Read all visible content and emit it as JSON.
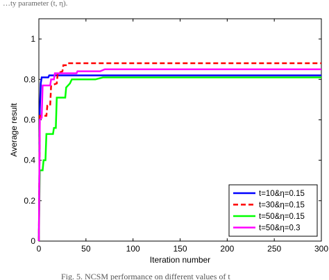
{
  "header_fragment": "…ty parameter (t, η).",
  "caption_fragment": "Fig. 5. NCSM performance on different values of t",
  "chart_data": {
    "type": "line",
    "title": "",
    "xlabel": "Iteration number",
    "ylabel": "Average result",
    "xlim": [
      0,
      300
    ],
    "ylim": [
      0,
      1.1
    ],
    "xticks": [
      0,
      50,
      100,
      150,
      200,
      250,
      300
    ],
    "yticks": [
      0,
      0.2,
      0.4,
      0.6,
      0.8,
      1
    ],
    "xtick_labels": [
      "0",
      "50",
      "100",
      "150",
      "200",
      "250",
      "300"
    ],
    "ytick_labels": [
      "0",
      "0.2",
      "0.4",
      "0.6",
      "0.8",
      "1"
    ],
    "grid": false,
    "legend_position": "bottom-right",
    "series": [
      {
        "name": "t=10&η=0.15",
        "color": "#0000ff",
        "dash": "solid",
        "points": [
          [
            0,
            0.0
          ],
          [
            1,
            0.65
          ],
          [
            2,
            0.78
          ],
          [
            3,
            0.81
          ],
          [
            10,
            0.81
          ],
          [
            11,
            0.82
          ],
          [
            50,
            0.82
          ],
          [
            51,
            0.82
          ],
          [
            300,
            0.82
          ]
        ]
      },
      {
        "name": "t=30&η=0.15",
        "color": "#ff0000",
        "dash": "dashed",
        "points": [
          [
            0,
            0.0
          ],
          [
            1,
            0.62
          ],
          [
            8,
            0.62
          ],
          [
            9,
            0.67
          ],
          [
            12,
            0.67
          ],
          [
            13,
            0.77
          ],
          [
            19,
            0.78
          ],
          [
            20,
            0.83
          ],
          [
            25,
            0.84
          ],
          [
            26,
            0.87
          ],
          [
            30,
            0.87
          ],
          [
            31,
            0.88
          ],
          [
            300,
            0.88
          ]
        ]
      },
      {
        "name": "t=50&η=0.15",
        "color": "#00ff00",
        "dash": "solid",
        "points": [
          [
            0,
            0.0
          ],
          [
            1,
            0.35
          ],
          [
            4,
            0.35
          ],
          [
            5,
            0.4
          ],
          [
            7,
            0.4
          ],
          [
            8,
            0.53
          ],
          [
            15,
            0.53
          ],
          [
            16,
            0.56
          ],
          [
            18,
            0.56
          ],
          [
            19,
            0.71
          ],
          [
            28,
            0.71
          ],
          [
            29,
            0.76
          ],
          [
            33,
            0.78
          ],
          [
            35,
            0.8
          ],
          [
            60,
            0.8
          ],
          [
            68,
            0.81
          ],
          [
            300,
            0.81
          ]
        ]
      },
      {
        "name": "t=50&η=0.3",
        "color": "#ff00ff",
        "dash": "solid",
        "points": [
          [
            0,
            0.0
          ],
          [
            1,
            0.6
          ],
          [
            3,
            0.61
          ],
          [
            4,
            0.77
          ],
          [
            12,
            0.77
          ],
          [
            13,
            0.8
          ],
          [
            16,
            0.8
          ],
          [
            17,
            0.83
          ],
          [
            40,
            0.83
          ],
          [
            41,
            0.84
          ],
          [
            65,
            0.84
          ],
          [
            70,
            0.85
          ],
          [
            300,
            0.85
          ]
        ]
      }
    ]
  }
}
